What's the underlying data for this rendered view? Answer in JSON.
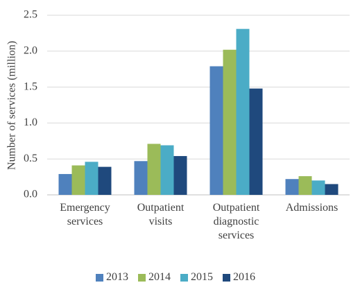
{
  "chart_data": {
    "type": "bar",
    "y_label": "Number of services (million)",
    "categories": [
      "Emergency services",
      "Outpatient visits",
      "Outpatient diagnostic services",
      "Admissions"
    ],
    "series": [
      {
        "name": "2013",
        "color": "#4f81bd",
        "values": [
          0.29,
          0.47,
          1.79,
          0.22
        ]
      },
      {
        "name": "2014",
        "color": "#9bbb59",
        "values": [
          0.41,
          0.71,
          2.02,
          0.26
        ]
      },
      {
        "name": "2015",
        "color": "#4bacc6",
        "values": [
          0.46,
          0.69,
          2.31,
          0.2
        ]
      },
      {
        "name": "2016",
        "color": "#1f497d",
        "values": [
          0.39,
          0.54,
          1.48,
          0.15
        ]
      }
    ],
    "ylim": [
      0,
      2.5
    ],
    "yticks": [
      {
        "value": 0,
        "label": "0.0"
      },
      0.5,
      {
        "value": 1,
        "label": "1.0"
      },
      1.5,
      {
        "value": 2,
        "label": "2.0"
      },
      2.5
    ],
    "grid": true,
    "legend": "bottom"
  }
}
